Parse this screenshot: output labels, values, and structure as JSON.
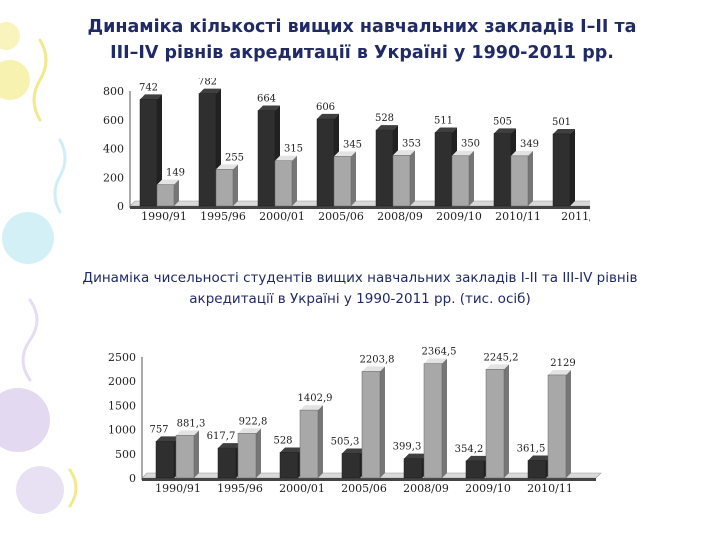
{
  "slide": {
    "title_line1": "Динаміка кількості вищих навчальних закладів І–ІІ та",
    "title_line2": "ІІІ–IV рівнів акредитації в Україні у 1990-2011 рр."
  },
  "colors": {
    "title": "#1f2a66",
    "dark_bar": "#2f2f2f",
    "light_bar": "#a8a8a8",
    "decor_yellow": "#f6f0a2",
    "decor_lilac": "#ded4ee",
    "decor_cyan": "#cfeef6"
  },
  "chart_data": [
    {
      "type": "bar",
      "title": "",
      "xlabel": "",
      "ylabel": "",
      "ylim": [
        0,
        800
      ],
      "yticks": [
        "0",
        "200",
        "400",
        "600",
        "800"
      ],
      "categories": [
        "1990/91",
        "1995/96",
        "2000/01",
        "2005/06",
        "2008/09",
        "2009/10",
        "2010/11",
        "2011/"
      ],
      "series": [
        {
          "values": [
            742,
            782,
            664,
            606,
            528,
            511,
            505,
            501
          ],
          "labels": [
            "742",
            "782",
            "664",
            "606",
            "528",
            "511",
            "505",
            "501"
          ]
        },
        {
          "values": [
            149,
            255,
            315,
            345,
            353,
            350,
            349,
            null
          ],
          "labels": [
            "149",
            "255",
            "315",
            "345",
            "353",
            "350",
            "349",
            ""
          ]
        }
      ],
      "grid": false,
      "legend": "none"
    },
    {
      "type": "bar",
      "title": "Динаміка чисельності студентів вищих навчальних закладів I-II та III-IV рівнів акредитації в Україні у 1990-2011 рр. (тис. осіб)",
      "xlabel": "",
      "ylabel": "",
      "ylim": [
        0,
        2500
      ],
      "yticks": [
        "0",
        "500",
        "1000",
        "1500",
        "2000",
        "2500"
      ],
      "categories": [
        "1990/91",
        "1995/96",
        "2000/01",
        "2005/06",
        "2008/09",
        "2009/10",
        "2010/11"
      ],
      "series": [
        {
          "values": [
            757,
            617.7,
            528,
            505.3,
            399.3,
            354.2,
            361.5
          ],
          "labels": [
            "757",
            "617,7",
            "528",
            "505,3",
            "399,3",
            "354,2",
            "361,5"
          ]
        },
        {
          "values": [
            881.3,
            922.8,
            1402.9,
            2203.8,
            2364.5,
            2245.2,
            2129
          ],
          "labels": [
            "881,3",
            "922,8",
            "1402,9",
            "2203,8",
            "2364,5",
            "2245,2",
            "2129"
          ]
        }
      ],
      "grid": false,
      "legend": "none"
    }
  ]
}
